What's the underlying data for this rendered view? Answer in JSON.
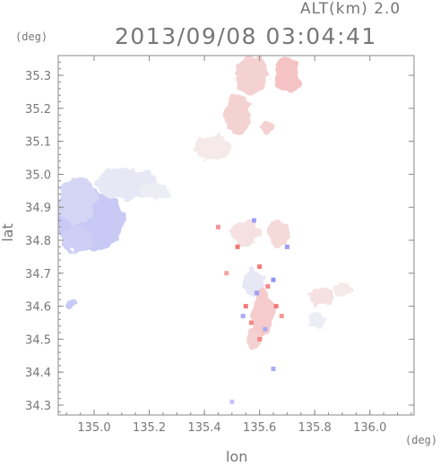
{
  "header": {
    "altitude": "ALT(km) 2.0",
    "timestamp": "2013/09/08 03:04:41"
  },
  "axes": {
    "y_unit": "(deg)",
    "x_unit": "(deg)",
    "y_label": "lat",
    "x_label": "lon"
  },
  "colors": {
    "axis": "#888888",
    "text": "#777777",
    "positive": "#f07a7a",
    "negative": "#8a8af0",
    "pale_positive": "#f7c4c4",
    "pale_negative": "#c9c9f5"
  },
  "chart_data": {
    "type": "heatmap",
    "title": "2013/09/08 03:04:41",
    "subtitle": "ALT(km) 2.0",
    "xlabel": "lon",
    "ylabel": "lat",
    "xlim": [
      134.87,
      136.16
    ],
    "ylim": [
      34.27,
      35.36
    ],
    "x_ticks": [
      135.0,
      135.2,
      135.4,
      135.6,
      135.8,
      136.0
    ],
    "x_tick_labels": [
      "135.0",
      "135.2",
      "135.4",
      "135.6",
      "135.8",
      "136.0"
    ],
    "y_ticks": [
      34.3,
      34.4,
      34.5,
      34.6,
      34.7,
      34.8,
      34.9,
      35.0,
      35.1,
      35.2,
      35.3
    ],
    "y_tick_labels": [
      "34.3",
      "34.4",
      "34.5",
      "34.6",
      "34.7",
      "34.8",
      "34.9",
      "35.0",
      "35.1",
      "35.2",
      "35.3"
    ],
    "regions": [
      {
        "lon": 134.99,
        "lat": 34.86,
        "rx": 0.12,
        "ry": 0.09,
        "value": -0.45
      },
      {
        "lon": 134.94,
        "lat": 34.92,
        "rx": 0.07,
        "ry": 0.07,
        "value": -0.35
      },
      {
        "lon": 135.12,
        "lat": 34.97,
        "rx": 0.11,
        "ry": 0.05,
        "value": -0.2
      },
      {
        "lon": 135.22,
        "lat": 34.95,
        "rx": 0.05,
        "ry": 0.03,
        "value": -0.15
      },
      {
        "lon": 134.94,
        "lat": 34.8,
        "rx": 0.06,
        "ry": 0.04,
        "value": -0.4
      },
      {
        "lon": 134.92,
        "lat": 34.61,
        "rx": 0.018,
        "ry": 0.015,
        "value": -0.45
      },
      {
        "lon": 135.57,
        "lat": 35.3,
        "rx": 0.06,
        "ry": 0.06,
        "value": 0.3
      },
      {
        "lon": 135.7,
        "lat": 35.3,
        "rx": 0.05,
        "ry": 0.05,
        "value": 0.4
      },
      {
        "lon": 135.52,
        "lat": 35.18,
        "rx": 0.05,
        "ry": 0.06,
        "value": 0.3
      },
      {
        "lon": 135.43,
        "lat": 35.08,
        "rx": 0.06,
        "ry": 0.04,
        "value": 0.15
      },
      {
        "lon": 135.63,
        "lat": 35.14,
        "rx": 0.03,
        "ry": 0.02,
        "value": 0.3
      },
      {
        "lon": 135.82,
        "lat": 34.63,
        "rx": 0.04,
        "ry": 0.025,
        "value": 0.2
      },
      {
        "lon": 135.9,
        "lat": 34.65,
        "rx": 0.04,
        "ry": 0.015,
        "value": 0.15
      },
      {
        "lon": 135.81,
        "lat": 34.56,
        "rx": 0.025,
        "ry": 0.03,
        "value": -0.15
      },
      {
        "lon": 135.58,
        "lat": 34.67,
        "rx": 0.04,
        "ry": 0.04,
        "value": -0.2
      },
      {
        "lon": 135.61,
        "lat": 34.58,
        "rx": 0.04,
        "ry": 0.07,
        "value": 0.35
      },
      {
        "lon": 135.58,
        "lat": 34.5,
        "rx": 0.025,
        "ry": 0.03,
        "value": 0.3
      },
      {
        "lon": 135.55,
        "lat": 34.82,
        "rx": 0.05,
        "ry": 0.04,
        "value": 0.2
      },
      {
        "lon": 135.67,
        "lat": 34.82,
        "rx": 0.04,
        "ry": 0.04,
        "value": 0.25
      }
    ],
    "speckles": [
      {
        "lon": 135.52,
        "lat": 34.78,
        "value": 0.9
      },
      {
        "lon": 135.58,
        "lat": 34.86,
        "value": -0.8
      },
      {
        "lon": 135.45,
        "lat": 34.84,
        "value": 0.7
      },
      {
        "lon": 135.6,
        "lat": 34.72,
        "value": 0.9
      },
      {
        "lon": 135.55,
        "lat": 34.6,
        "value": 0.9
      },
      {
        "lon": 135.63,
        "lat": 34.66,
        "value": 0.8
      },
      {
        "lon": 135.59,
        "lat": 34.64,
        "value": -0.8
      },
      {
        "lon": 135.66,
        "lat": 34.6,
        "value": 0.9
      },
      {
        "lon": 135.57,
        "lat": 34.55,
        "value": 0.8
      },
      {
        "lon": 135.62,
        "lat": 34.53,
        "value": -0.7
      },
      {
        "lon": 135.6,
        "lat": 34.5,
        "value": 0.8
      },
      {
        "lon": 135.65,
        "lat": 34.68,
        "value": -0.9
      },
      {
        "lon": 135.7,
        "lat": 34.78,
        "value": -0.8
      },
      {
        "lon": 135.48,
        "lat": 34.7,
        "value": 0.6
      },
      {
        "lon": 135.65,
        "lat": 34.41,
        "value": -0.7
      },
      {
        "lon": 135.5,
        "lat": 34.31,
        "value": -0.5
      },
      {
        "lon": 135.54,
        "lat": 34.57,
        "value": -0.7
      },
      {
        "lon": 135.68,
        "lat": 34.57,
        "value": 0.7
      }
    ]
  }
}
